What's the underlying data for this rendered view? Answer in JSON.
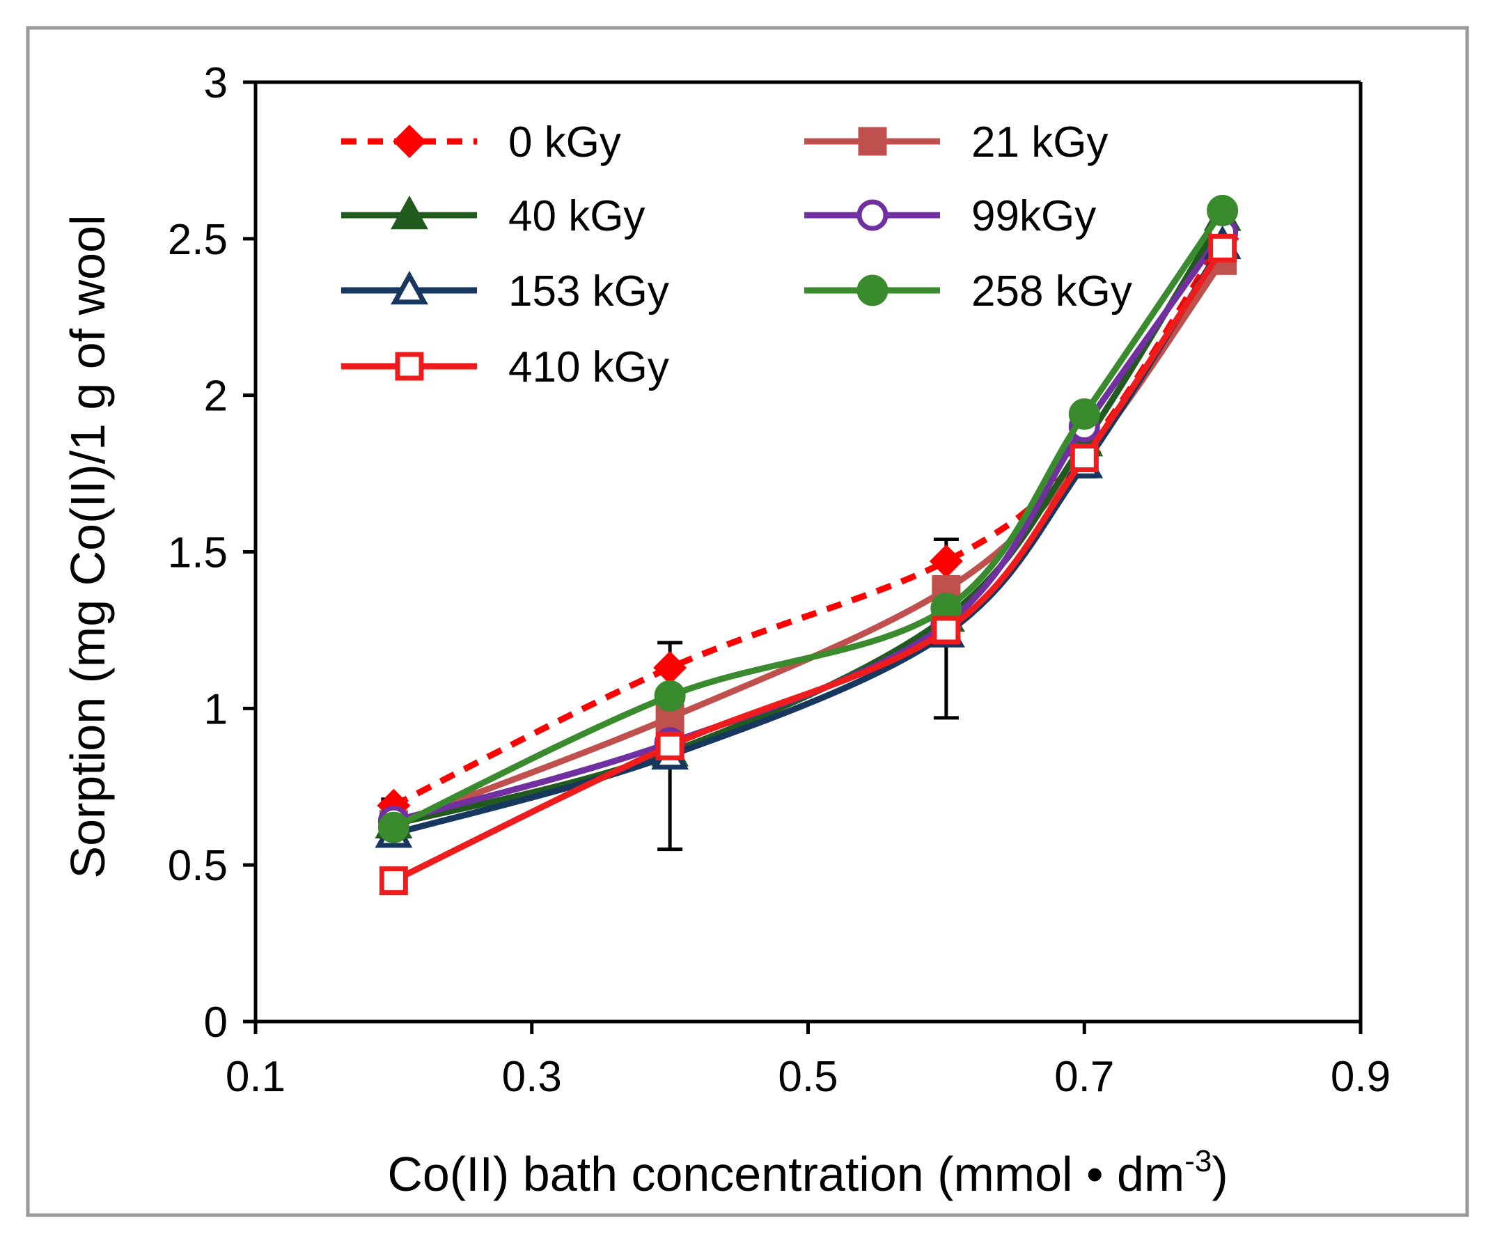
{
  "chart_data": {
    "type": "line",
    "title": "",
    "xlabel": "Co(II) bath concentration (mmol • dm",
    "xlabel_sup": "-3",
    "xlabel_end": ")",
    "ylabel": "Sorption (mg Co(II)/1 g of wool",
    "xlim": [
      0.1,
      0.9
    ],
    "ylim": [
      0,
      3
    ],
    "x_ticks": [
      "0.1",
      "0.3",
      "0.5",
      "0.7",
      "0.9"
    ],
    "y_ticks": [
      "0",
      "0.5",
      "1",
      "1.5",
      "2",
      "2.5",
      "3"
    ],
    "x": [
      0.2,
      0.4,
      0.6,
      0.7,
      0.8
    ],
    "series": [
      {
        "name": "0 kGy",
        "values": [
          0.69,
          1.13,
          1.47,
          1.82,
          2.5
        ],
        "color": "#ff0000",
        "marker": "diamond",
        "filled": true,
        "dashed": true,
        "error_low": [
          0.6,
          0.55,
          0.97,
          1.74,
          2.42
        ],
        "error_high": [
          0.71,
          1.21,
          1.54,
          1.87,
          2.6
        ]
      },
      {
        "name": "21 kGy",
        "values": [
          0.63,
          0.97,
          1.38,
          1.8,
          2.43
        ],
        "color": "#c0504d",
        "marker": "square",
        "filled": true,
        "dashed": false
      },
      {
        "name": "40 kGy",
        "values": [
          0.63,
          0.86,
          1.29,
          1.85,
          2.57
        ],
        "color": "#215a1f",
        "marker": "triangle",
        "filled": true,
        "dashed": false
      },
      {
        "name": "99kGy",
        "values": [
          0.64,
          0.89,
          1.27,
          1.9,
          2.52
        ],
        "color": "#7030a0",
        "marker": "circle",
        "filled": false,
        "dashed": false
      },
      {
        "name": "153 kGy",
        "values": [
          0.6,
          0.85,
          1.24,
          1.78,
          2.48
        ],
        "color": "#17375e",
        "marker": "triangle",
        "filled": false,
        "dashed": false
      },
      {
        "name": "258 kGy",
        "values": [
          0.62,
          1.04,
          1.32,
          1.94,
          2.59
        ],
        "color": "#3a8a2e",
        "marker": "circle",
        "filled": true,
        "dashed": false
      },
      {
        "name": "410 kGy",
        "values": [
          0.45,
          0.88,
          1.25,
          1.8,
          2.47
        ],
        "color": "#ee1c1c",
        "marker": "square",
        "filled": false,
        "dashed": false
      }
    ],
    "grid": false,
    "legend_position": "top-left"
  }
}
